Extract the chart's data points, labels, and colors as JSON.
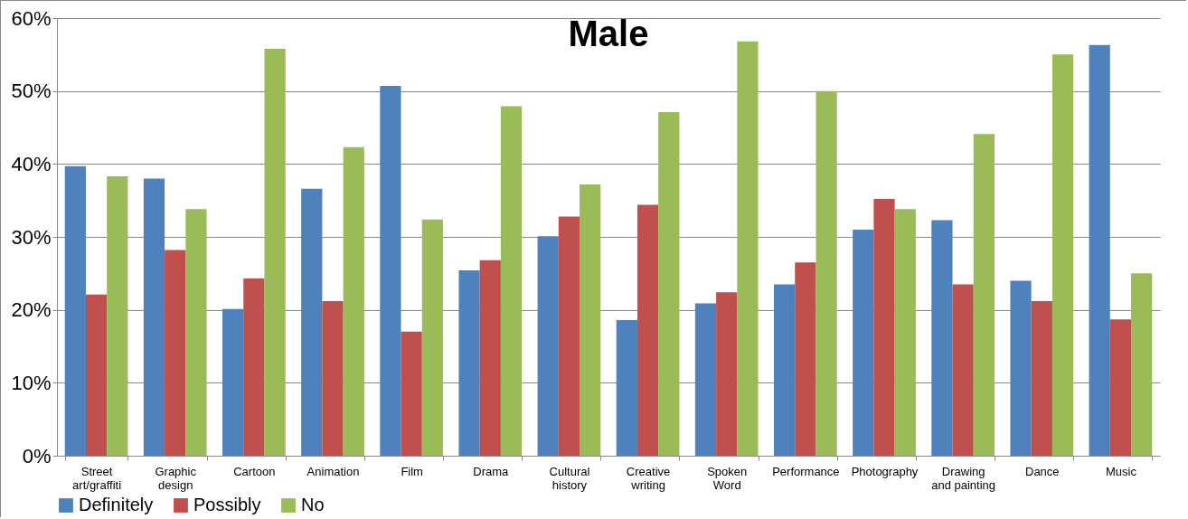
{
  "chart_data": {
    "type": "bar",
    "title": "Male",
    "categories": [
      "Street art/graffiti",
      "Graphic design",
      "Cartoon",
      "Animation",
      "Film",
      "Drama",
      "Cultural history",
      "Creative writing",
      "Spoken Word",
      "Performance",
      "Photography",
      "Drawing and painting",
      "Dance",
      "Music"
    ],
    "series": [
      {
        "name": "Definitely",
        "color": "#4f81bd",
        "values": [
          39.7,
          38.0,
          20.1,
          36.6,
          50.7,
          25.4,
          30.1,
          18.6,
          20.9,
          23.5,
          31.0,
          32.3,
          24.0,
          56.3
        ]
      },
      {
        "name": "Possibly",
        "color": "#c0504d",
        "values": [
          22.1,
          28.2,
          24.3,
          21.2,
          17.0,
          26.8,
          32.8,
          34.4,
          22.4,
          26.5,
          35.2,
          23.5,
          21.2,
          18.7
        ]
      },
      {
        "name": "No",
        "color": "#9bbb59",
        "values": [
          38.3,
          33.8,
          55.8,
          42.3,
          32.4,
          47.9,
          37.2,
          47.1,
          56.8,
          50.0,
          33.8,
          44.1,
          55.0,
          25.0
        ]
      }
    ],
    "ylim": [
      0,
      60
    ],
    "yticks": [
      {
        "value": 0,
        "label": "0%"
      },
      {
        "value": 10,
        "label": "10%"
      },
      {
        "value": 20,
        "label": "20%"
      },
      {
        "value": 30,
        "label": "30%"
      },
      {
        "value": 40,
        "label": "40%"
      },
      {
        "value": 50,
        "label": "50%"
      },
      {
        "value": 60,
        "label": "60%"
      }
    ],
    "grid": "y",
    "legend": "bottom"
  }
}
